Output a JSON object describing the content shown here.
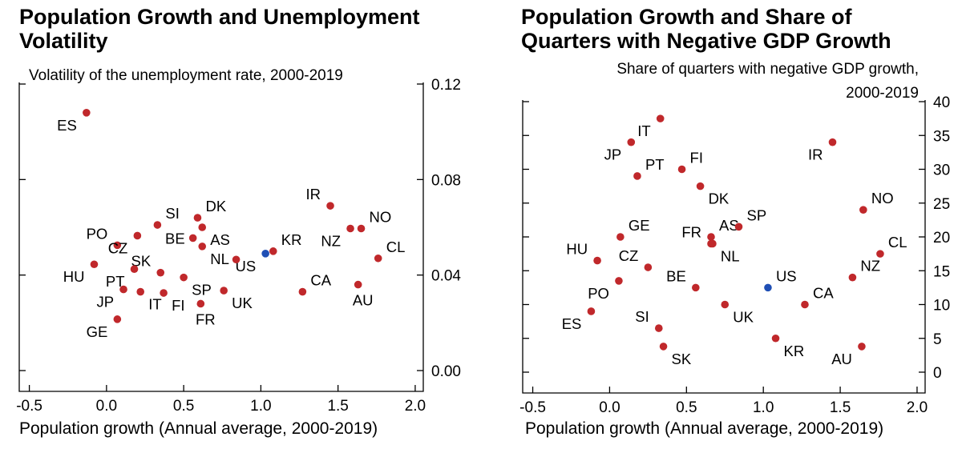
{
  "chart_data": [
    {
      "type": "scatter",
      "title": [
        "Population Growth and Unemployment",
        "Volatility"
      ],
      "ylabel": "Volatility of the unemployment rate, 2000-2019",
      "xlabel": "Population growth (Annual average, 2000-2019)",
      "xlim": [
        -0.5,
        2.0
      ],
      "ylim": [
        0.0,
        0.12
      ],
      "xticks": [
        -0.5,
        0.0,
        0.5,
        1.0,
        1.5,
        2.0
      ],
      "xtick_labels": [
        "-0.5",
        "0.0",
        "0.5",
        "1.0",
        "1.5",
        "2.0"
      ],
      "yticks": [
        0.0,
        0.04,
        0.08,
        0.12
      ],
      "ytick_labels": [
        "0.00",
        "0.04",
        "0.08",
        "0.12"
      ],
      "y_axis_side": "right",
      "grid": false,
      "colors": {
        "points": "#c0282b",
        "highlight": "#1f4fb5"
      },
      "points": [
        {
          "label": "ES",
          "x": -0.13,
          "y": 0.108,
          "lpos": "bl"
        },
        {
          "label": "PO",
          "x": 0.07,
          "y": 0.0525,
          "lpos": "tl"
        },
        {
          "label": "HU",
          "x": -0.08,
          "y": 0.0445,
          "lpos": "bl"
        },
        {
          "label": "CZ",
          "x": 0.2,
          "y": 0.0565,
          "lpos": "bl"
        },
        {
          "label": "SI",
          "x": 0.33,
          "y": 0.061,
          "lpos": "tr"
        },
        {
          "label": "DK",
          "x": 0.59,
          "y": 0.064,
          "lpos": "tr"
        },
        {
          "label": "BE",
          "x": 0.56,
          "y": 0.0555,
          "lpos": "l"
        },
        {
          "label": "AS",
          "x": 0.62,
          "y": 0.06,
          "lpos": "br"
        },
        {
          "label": "SK",
          "x": 0.35,
          "y": 0.041,
          "lpos": "tl"
        },
        {
          "label": "PT",
          "x": 0.18,
          "y": 0.0425,
          "lpos": "bl"
        },
        {
          "label": "NL",
          "x": 0.62,
          "y": 0.052,
          "lpos": "br"
        },
        {
          "label": "US",
          "x": 1.03,
          "y": 0.049,
          "lpos": "bl"
        },
        {
          "label": "KR",
          "x": 1.08,
          "y": 0.05,
          "lpos": "tr"
        },
        {
          "label": "SP",
          "x": 0.5,
          "y": 0.039,
          "lpos": "br"
        },
        {
          "label": "JP",
          "x": 0.11,
          "y": 0.034,
          "lpos": "bl"
        },
        {
          "label": "IT",
          "x": 0.22,
          "y": 0.033,
          "lpos": "br"
        },
        {
          "label": "FI",
          "x": 0.37,
          "y": 0.0325,
          "lpos": "br"
        },
        {
          "label": "UK",
          "x": 0.76,
          "y": 0.0335,
          "lpos": "br"
        },
        {
          "label": "FR",
          "x": 0.61,
          "y": 0.028,
          "lpos": "b"
        },
        {
          "label": "GE",
          "x": 0.07,
          "y": 0.0215,
          "lpos": "bl"
        },
        {
          "label": "NL2",
          "x": 0.84,
          "y": 0.0465,
          "lpos": "none"
        },
        {
          "label": "IR",
          "x": 1.45,
          "y": 0.069,
          "lpos": "tl"
        },
        {
          "label": "NO",
          "x": 1.65,
          "y": 0.0595,
          "lpos": "tr"
        },
        {
          "label": "NZ",
          "x": 1.58,
          "y": 0.0595,
          "lpos": "bl"
        },
        {
          "label": "CL",
          "x": 1.76,
          "y": 0.047,
          "lpos": "tr"
        },
        {
          "label": "CA",
          "x": 1.27,
          "y": 0.033,
          "lpos": "tr"
        },
        {
          "label": "AU",
          "x": 1.63,
          "y": 0.036,
          "lpos": "b"
        }
      ]
    },
    {
      "type": "scatter",
      "title": [
        "Population Growth and Share of",
        "Quarters with Negative GDP Growth"
      ],
      "ylabel": [
        "Share of quarters with negative GDP growth,",
        "2000-2019"
      ],
      "xlabel": "Population growth (Annual average, 2000-2019)",
      "xlim": [
        -0.5,
        2.0
      ],
      "ylim": [
        0,
        40
      ],
      "xticks": [
        -0.5,
        0.0,
        0.5,
        1.0,
        1.5,
        2.0
      ],
      "xtick_labels": [
        "-0.5",
        "0.0",
        "0.5",
        "1.0",
        "1.5",
        "2.0"
      ],
      "yticks": [
        0,
        5,
        10,
        15,
        20,
        25,
        30,
        35,
        40
      ],
      "ytick_labels": [
        "0",
        "5",
        "10",
        "15",
        "20",
        "25",
        "30",
        "35",
        "40"
      ],
      "y_axis_side": "right",
      "grid": false,
      "colors": {
        "points": "#c0282b",
        "highlight": "#1f4fb5"
      },
      "points": [
        {
          "label": "IT",
          "x": 0.33,
          "y": 37.5,
          "lpos": "bl"
        },
        {
          "label": "JP",
          "x": 0.14,
          "y": 34.0,
          "lpos": "bl"
        },
        {
          "label": "PT",
          "x": 0.18,
          "y": 29.0,
          "lpos": "tr"
        },
        {
          "label": "FI",
          "x": 0.47,
          "y": 30.0,
          "lpos": "tr"
        },
        {
          "label": "DK",
          "x": 0.59,
          "y": 27.5,
          "lpos": "br"
        },
        {
          "label": "AS",
          "x": 0.66,
          "y": 20.0,
          "lpos": "tr"
        },
        {
          "label": "SP",
          "x": 0.84,
          "y": 21.5,
          "lpos": "tr"
        },
        {
          "label": "FR",
          "x": 0.66,
          "y": 19.0,
          "lpos": "tl"
        },
        {
          "label": "NL",
          "x": 0.67,
          "y": 19.0,
          "lpos": "br"
        },
        {
          "label": "GE",
          "x": 0.07,
          "y": 20.0,
          "lpos": "tr"
        },
        {
          "label": "HU",
          "x": -0.08,
          "y": 16.5,
          "lpos": "tl"
        },
        {
          "label": "CZ",
          "x": 0.25,
          "y": 15.5,
          "lpos": "tl"
        },
        {
          "label": "PO",
          "x": 0.06,
          "y": 13.5,
          "lpos": "bl"
        },
        {
          "label": "BE",
          "x": 0.56,
          "y": 12.5,
          "lpos": "tl"
        },
        {
          "label": "US",
          "x": 1.03,
          "y": 12.5,
          "lpos": "tr"
        },
        {
          "label": "CA",
          "x": 1.27,
          "y": 10.0,
          "lpos": "tr"
        },
        {
          "label": "UK",
          "x": 0.75,
          "y": 10.0,
          "lpos": "br"
        },
        {
          "label": "ES",
          "x": -0.12,
          "y": 9.0,
          "lpos": "bl"
        },
        {
          "label": "SI",
          "x": 0.32,
          "y": 6.5,
          "lpos": "tl"
        },
        {
          "label": "SK",
          "x": 0.35,
          "y": 3.8,
          "lpos": "br"
        },
        {
          "label": "KR",
          "x": 1.08,
          "y": 5.0,
          "lpos": "br"
        },
        {
          "label": "IR",
          "x": 1.45,
          "y": 34.0,
          "lpos": "bl"
        },
        {
          "label": "NO",
          "x": 1.65,
          "y": 24.0,
          "lpos": "tr"
        },
        {
          "label": "CL",
          "x": 1.76,
          "y": 17.5,
          "lpos": "tr"
        },
        {
          "label": "NZ",
          "x": 1.58,
          "y": 14.0,
          "lpos": "tr"
        },
        {
          "label": "AU",
          "x": 1.64,
          "y": 3.8,
          "lpos": "bl"
        }
      ]
    }
  ]
}
